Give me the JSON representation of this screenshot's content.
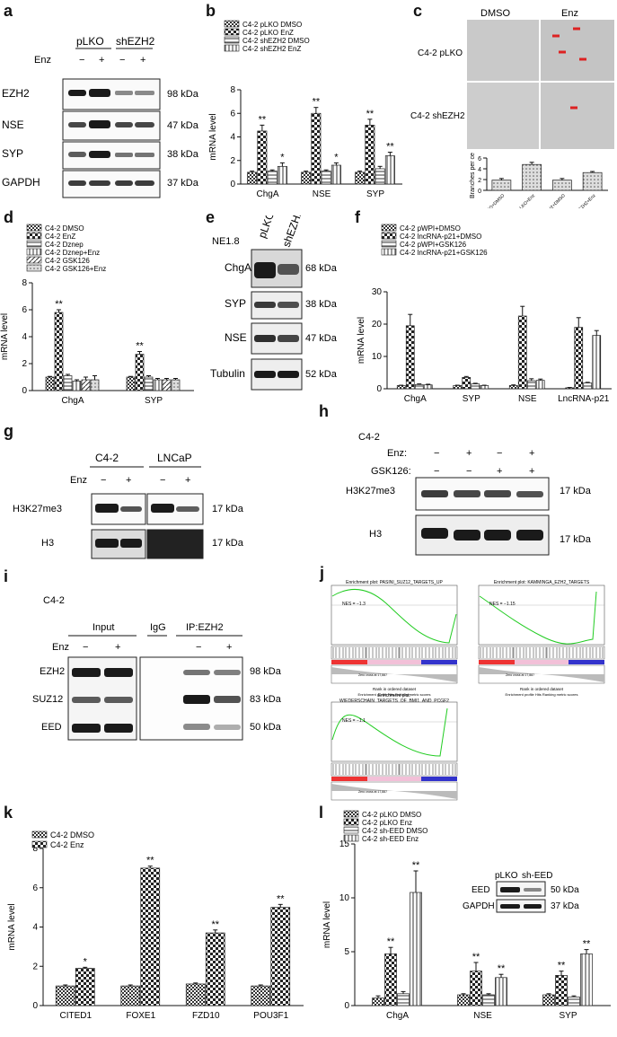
{
  "panel_letters": {
    "a": "a",
    "b": "b",
    "c": "c",
    "d": "d",
    "e": "e",
    "f": "f",
    "g": "g",
    "h": "h",
    "i": "i",
    "j": "j",
    "k": "k",
    "l": "l"
  },
  "text": {
    "enz": "Enz",
    "minus": "−",
    "plus": "+",
    "pLKO": "pLKO",
    "shEZH2": "shEZH2",
    "sh_EED": "sh-EED",
    "EZH2": "EZH2",
    "NSE": "NSE",
    "SYP": "SYP",
    "GAPDH": "GAPDH",
    "ChgA": "ChgA",
    "Tubulin": "Tubulin",
    "H3K27me3": "H3K27me3",
    "H3": "H3",
    "SUZ12": "SUZ12",
    "EED": "EED",
    "k98": "98 kDa",
    "k47": "47 kDa",
    "k38": "38 kDa",
    "k37": "37 kDa",
    "k68": "68 kDa",
    "k52": "52 kDa",
    "k17": "17 kDa",
    "k83": "83 kDa",
    "k50": "50 kDa",
    "NE18": "NE1.8",
    "C42": "C4-2",
    "LNCaP": "LNCaP",
    "GSK126": "GSK126:",
    "Enz_colon": "Enz:",
    "Input": "Input",
    "IgG": "IgG",
    "IP_EZH2": "IP:EZH2",
    "DMSO": "DMSO",
    "C42_pLKO": "C4-2 pLKO",
    "C42_shEZH2": "C4-2 shEZH2",
    "mrna": "mRNA level",
    "branches": "Branches per cell",
    "sig": "**",
    "sig1": "*"
  },
  "gsea": {
    "plots": [
      {
        "title": "Enrichment plot: PASINI_SUZ12_TARGETS_UP",
        "nes": "NES = −1.3"
      },
      {
        "title": "Enrichment plot: KAMMINGA_EZH2_TARGETS",
        "nes": "NES = −1.15"
      },
      {
        "title": "Enrichment plot:\nWIEDERSCHAIN_TARGETS_OF_BMI1_AND_PCGF2",
        "nes": "NES = −1.1"
      }
    ],
    "xlabel": "Rank in ordered dataset",
    "legend": "Enrichment profile   Hits   Ranking metric scores",
    "ylabel": "Enrichment score (ES)",
    "ylabel2": "Ranked list metric (Signal2Noise)",
    "pos": "'DMSO' (positively correlated)",
    "neg": "'ENZ' (negatively correlated)",
    "zero": "Zero cross at 17,887",
    "xticks": [
      "0",
      "10,000",
      "20,000",
      "30,000",
      "40,000",
      "50,000",
      "60,000"
    ],
    "esticks": [
      "0.2",
      "0.1",
      "0.0",
      "-0.1",
      "-0.2",
      "-0.3",
      "-0.4"
    ]
  },
  "chart_data": [
    {
      "panel": "b",
      "type": "bar",
      "categories": [
        "ChgA",
        "NSE",
        "SYP"
      ],
      "series": [
        {
          "name": "C4-2 pLKO DMSO",
          "values": [
            1.0,
            1.0,
            1.0
          ],
          "errors": [
            0.1,
            0.1,
            0.1
          ],
          "sig": [
            "",
            "",
            ""
          ]
        },
        {
          "name": "C4-2 pLKO EnZ",
          "values": [
            4.5,
            6.0,
            5.0
          ],
          "errors": [
            0.5,
            0.5,
            0.5
          ],
          "sig": [
            "**",
            "**",
            "**"
          ]
        },
        {
          "name": "C4-2 shEZH2 DMSO",
          "values": [
            1.1,
            1.1,
            1.3
          ],
          "errors": [
            0.1,
            0.1,
            0.2
          ],
          "sig": [
            "",
            "",
            ""
          ]
        },
        {
          "name": "C4-2 shEZH2 EnZ",
          "values": [
            1.5,
            1.6,
            2.4
          ],
          "errors": [
            0.3,
            0.2,
            0.3
          ],
          "sig": [
            "*",
            "*",
            "**"
          ]
        }
      ],
      "ylabel": "mRNA level",
      "ylim": [
        0,
        8
      ],
      "yticks": [
        0,
        2,
        4,
        6,
        8
      ]
    },
    {
      "panel": "c",
      "type": "bar",
      "categories": [
        "C4-2 pLKO+DMSO",
        "C4-2 pLKO+Enz",
        "C4-2 shEZH2+DMSO",
        "C4-2 shEZH2+Enz"
      ],
      "values": [
        1.9,
        4.8,
        1.9,
        3.3
      ],
      "errors": [
        0.3,
        0.4,
        0.3,
        0.2
      ],
      "ylabel": "Branches per cell",
      "ylim": [
        0,
        6
      ],
      "yticks": [
        0,
        2,
        4,
        6
      ]
    },
    {
      "panel": "d",
      "type": "bar",
      "categories": [
        "ChgA",
        "SYP"
      ],
      "series": [
        {
          "name": "C4-2 DMSO",
          "values": [
            1.0,
            1.0
          ],
          "errors": [
            0.05,
            0.05
          ],
          "sig": [
            "",
            ""
          ]
        },
        {
          "name": "C4-2 EnZ",
          "values": [
            5.8,
            2.7
          ],
          "errors": [
            0.2,
            0.2
          ],
          "sig": [
            "**",
            "**"
          ]
        },
        {
          "name": "C4-2 Dznep",
          "values": [
            1.1,
            1.0
          ],
          "errors": [
            0.1,
            0.1
          ],
          "sig": [
            "",
            ""
          ]
        },
        {
          "name": "C4-2 Dznep+Enz",
          "values": [
            0.7,
            0.8
          ],
          "errors": [
            0.1,
            0.1
          ],
          "sig": [
            "",
            ""
          ]
        },
        {
          "name": "C4-2 GSK126",
          "values": [
            0.8,
            0.8
          ],
          "errors": [
            0.2,
            0.1
          ],
          "sig": [
            "",
            ""
          ]
        },
        {
          "name": "C4-2 GSK126+Enz",
          "values": [
            0.8,
            0.8
          ],
          "errors": [
            0.3,
            0.1
          ],
          "sig": [
            "",
            ""
          ]
        }
      ],
      "ylabel": "mRNA level",
      "ylim": [
        0,
        8
      ],
      "yticks": [
        0,
        2,
        4,
        6,
        8
      ]
    },
    {
      "panel": "f",
      "type": "bar",
      "categories": [
        "ChgA",
        "SYP",
        "NSE",
        "LncRNA-p21"
      ],
      "series": [
        {
          "name": "C4-2 pWPI+DMSO",
          "values": [
            1.0,
            1.0,
            1.0,
            0.3
          ],
          "errors": [
            0.1,
            0.1,
            0.2,
            0.1
          ]
        },
        {
          "name": "C4-2 lncRNA-p21+DMSO",
          "values": [
            19.5,
            3.5,
            22.5,
            19.0
          ],
          "errors": [
            3.5,
            0.3,
            3.0,
            3.0
          ]
        },
        {
          "name": "C4-2 pWPI+GSK126",
          "values": [
            1.3,
            1.5,
            2.5,
            1.8
          ],
          "errors": [
            0.2,
            0.2,
            0.6,
            0.2
          ]
        },
        {
          "name": "C4-2 lncRNA-p21+GSK126",
          "values": [
            1.2,
            1.0,
            2.6,
            16.5
          ],
          "errors": [
            0.2,
            0.1,
            0.4,
            1.5
          ]
        }
      ],
      "ylabel": "mRNA level",
      "ylim": [
        0,
        30
      ],
      "yticks": [
        0,
        10,
        20,
        30
      ]
    },
    {
      "panel": "k",
      "type": "bar",
      "categories": [
        "CITED1",
        "FOXE1",
        "FZD10",
        "POU3F1"
      ],
      "series": [
        {
          "name": "C4-2 DMSO",
          "values": [
            1.0,
            1.0,
            1.1,
            1.0
          ],
          "errors": [
            0.05,
            0.05,
            0.05,
            0.05
          ],
          "sig": [
            "",
            "",
            "",
            ""
          ]
        },
        {
          "name": "C4-2 Enz",
          "values": [
            1.9,
            7.0,
            3.7,
            5.0
          ],
          "errors": [
            0.05,
            0.1,
            0.15,
            0.15
          ],
          "sig": [
            "*",
            "**",
            "**",
            "**"
          ]
        }
      ],
      "ylabel": "mRNA level",
      "ylim": [
        0,
        8
      ],
      "yticks": [
        0,
        2,
        4,
        6,
        8
      ]
    },
    {
      "panel": "l",
      "type": "bar",
      "categories": [
        "ChgA",
        "NSE",
        "SYP"
      ],
      "series": [
        {
          "name": "C4-2 pLKO DMSO",
          "values": [
            0.7,
            1.0,
            1.0
          ],
          "errors": [
            0.2,
            0.1,
            0.1
          ],
          "sig": [
            "",
            "",
            ""
          ]
        },
        {
          "name": "C4-2 pLKO Enz",
          "values": [
            4.8,
            3.2,
            2.8
          ],
          "errors": [
            0.6,
            0.8,
            0.4
          ],
          "sig": [
            "**",
            "**",
            "**"
          ]
        },
        {
          "name": "C4-2 sh-EED DMSO",
          "values": [
            1.1,
            1.0,
            0.8
          ],
          "errors": [
            0.2,
            0.1,
            0.1
          ],
          "sig": [
            "",
            "",
            ""
          ]
        },
        {
          "name": "C4-2 sh-EED Enz",
          "values": [
            10.5,
            2.6,
            4.8
          ],
          "errors": [
            2.0,
            0.3,
            0.4
          ],
          "sig": [
            "**",
            "**",
            "**"
          ]
        }
      ],
      "ylabel": "mRNA level",
      "ylim": [
        0,
        15
      ],
      "yticks": [
        0,
        5,
        10,
        15
      ]
    }
  ]
}
